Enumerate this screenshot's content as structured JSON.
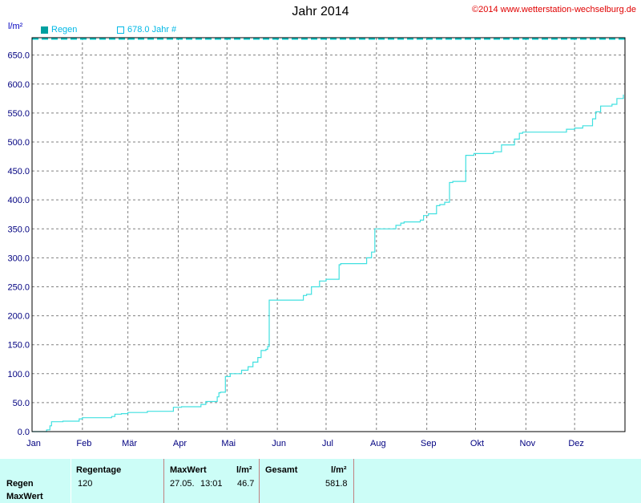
{
  "header": {
    "title": "Jahr 2014",
    "copyright": "©2014 www.wetterstation-wechselburg.de",
    "unit": "l/m²"
  },
  "legend": {
    "regen_label": "Regen",
    "year_label": "678.0 Jahr #"
  },
  "colors": {
    "series": "#40e0e0",
    "dashed_line": "#00c8c8",
    "axis_text": "#000080",
    "panel_bg": "#ccfdf7"
  },
  "chart_data": {
    "type": "line",
    "title": "Jahr 2014",
    "ylabel": "l/m²",
    "ylim": [
      0,
      680
    ],
    "y_ticks": [
      "0.0",
      "50.0",
      "100.0",
      "150.0",
      "200.0",
      "250.0",
      "300.0",
      "350.0",
      "400.0",
      "450.0",
      "500.0",
      "550.0",
      "600.0",
      "650.0"
    ],
    "x_ticks": [
      "Jan",
      "Feb",
      "Mär",
      "Apr",
      "Mai",
      "Jun",
      "Jul",
      "Aug",
      "Sep",
      "Okt",
      "Nov",
      "Dez"
    ],
    "grid": true,
    "reference_line": {
      "label": "678.0 Jahr #",
      "value": 678
    },
    "series": [
      {
        "name": "Regen",
        "x_unit": "day of year",
        "x": [
          1,
          10,
          12,
          13,
          20,
          28,
          30,
          32,
          50,
          52,
          56,
          60,
          70,
          72,
          88,
          93,
          105,
          108,
          115,
          116,
          117,
          120,
          123,
          128,
          130,
          134,
          137,
          140,
          142,
          145,
          146,
          147,
          167,
          168,
          170,
          173,
          178,
          182,
          190,
          191,
          205,
          207,
          210,
          211,
          212,
          225,
          228,
          230,
          240,
          242,
          245,
          250,
          252,
          255,
          258,
          260,
          268,
          273,
          282,
          285,
          290,
          298,
          301,
          303,
          330,
          335,
          340,
          346,
          348,
          351,
          358,
          361,
          365
        ],
        "values": [
          0,
          3,
          10,
          17,
          18,
          18,
          22,
          24,
          26,
          30,
          31,
          33,
          33,
          35,
          42,
          43,
          47,
          52,
          60,
          67,
          68,
          95,
          100,
          100,
          106,
          112,
          120,
          128,
          140,
          142,
          147,
          227,
          227,
          235,
          237,
          250,
          260,
          263,
          288,
          290,
          290,
          300,
          310,
          310,
          350,
          356,
          360,
          362,
          365,
          373,
          376,
          390,
          392,
          396,
          430,
          432,
          477,
          480,
          480,
          483,
          495,
          505,
          515,
          517,
          522,
          524,
          528,
          540,
          552,
          562,
          565,
          575,
          581.8
        ]
      }
    ]
  },
  "stats": {
    "head_regentage": "Regentage",
    "head_maxwert": "MaxWert",
    "head_unit1": "l/m²",
    "head_gesamt": "Gesamt",
    "head_unit2": "l/m²",
    "row1_label": "Regen",
    "row2_label": "MaxWert",
    "regentage_value": "120",
    "maxwert_date": "27.05.",
    "maxwert_time": "13:01",
    "maxwert_value": "46.7",
    "gesamt_value": "581.8"
  }
}
